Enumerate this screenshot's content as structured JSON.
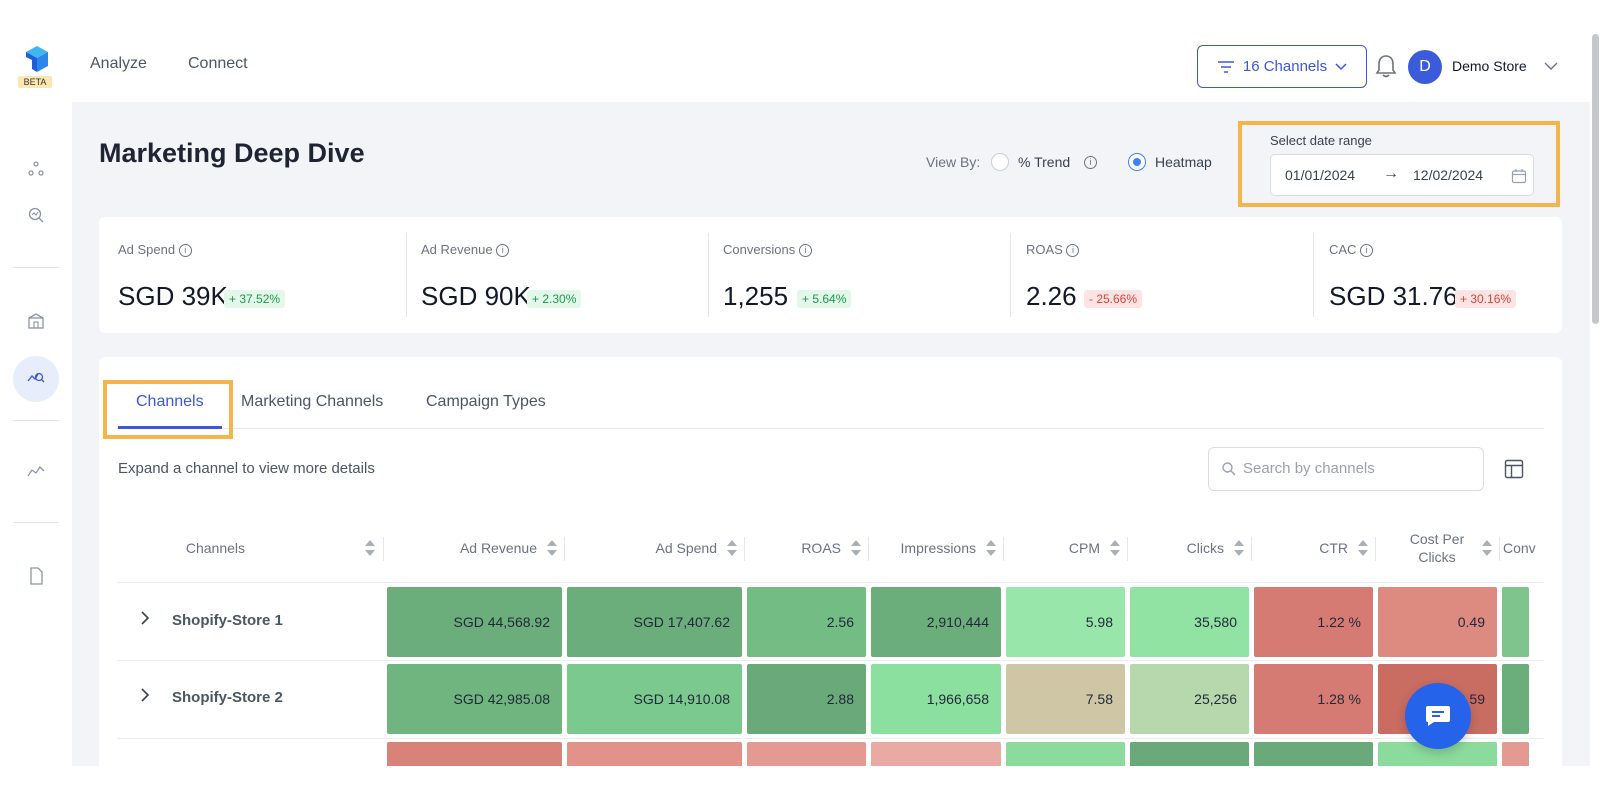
{
  "app": {
    "logo_badge": "BETA",
    "nav": [
      "Analyze",
      "Connect"
    ],
    "channels_filter": "16 Channels",
    "user_initial": "D",
    "store_name": "Demo Store",
    "accent": "#3b56e0"
  },
  "header": {
    "title": "Marketing Deep Dive",
    "view_by_label": "View By:",
    "view_options": [
      {
        "label": "% Trend",
        "selected": false
      },
      {
        "label": "Heatmap",
        "selected": true
      }
    ],
    "date_range_label": "Select date range",
    "date_start": "01/01/2024",
    "date_arrow": "→",
    "date_end": "12/02/2024"
  },
  "kpis": [
    {
      "label": "Ad Spend",
      "value": "SGD 39K",
      "delta": "+ 37.52%",
      "trend": "up"
    },
    {
      "label": "Ad Revenue",
      "value": "SGD 90K",
      "delta": "+ 2.30%",
      "trend": "up"
    },
    {
      "label": "Conversions",
      "value": "1,255",
      "delta": "+ 5.64%",
      "trend": "up"
    },
    {
      "label": "ROAS",
      "value": "2.26",
      "delta": "- 25.66%",
      "trend": "down"
    },
    {
      "label": "CAC",
      "value": "SGD 31.76",
      "delta": "+ 30.16%",
      "trend": "down"
    }
  ],
  "tabs": [
    {
      "label": "Channels",
      "active": true
    },
    {
      "label": "Marketing Channels",
      "active": false
    },
    {
      "label": "Campaign Types",
      "active": false
    }
  ],
  "table": {
    "hint": "Expand a channel to view more details",
    "search_placeholder": "Search by channels",
    "columns": [
      "Channels",
      "Ad Revenue",
      "Ad Spend",
      "ROAS",
      "Impressions",
      "CPM",
      "Clicks",
      "CTR",
      "Cost Per Clicks",
      "Conv"
    ],
    "rows": [
      {
        "name": "Shopify-Store 1",
        "cells": [
          "SGD 44,568.92",
          "SGD 17,407.62",
          "2.56",
          "2,910,444",
          "5.98",
          "35,580",
          "1.22 %",
          "0.49",
          ""
        ],
        "colors": [
          "#6cae7b",
          "#6cae7b",
          "#73bd85",
          "#6cae7b",
          "#98e6a9",
          "#91e3a3",
          "#d67b73",
          "#dd8a80",
          "#7fc48c"
        ]
      },
      {
        "name": "Shopify-Store 2",
        "cells": [
          "SGD 42,985.08",
          "SGD 14,910.08",
          "2.88",
          "1,966,658",
          "7.58",
          "25,256",
          "1.28 %",
          "0.59",
          ""
        ],
        "colors": [
          "#70b47f",
          "#7bc98e",
          "#6aa979",
          "#8be0a0",
          "#cfc6a6",
          "#b7d8ad",
          "#d67b73",
          "#c96c62",
          "#6cae7b"
        ]
      },
      {
        "name": "",
        "cells": [
          "",
          "",
          "",
          "",
          "",
          "",
          "",
          "",
          ""
        ],
        "colors": [
          "#d9827a",
          "#e3928a",
          "#e39a92",
          "#e8aaa2",
          "#8bdc9c",
          "#6aa979",
          "#6aa979",
          "#8bdc9c",
          "#e39a92"
        ]
      }
    ]
  }
}
